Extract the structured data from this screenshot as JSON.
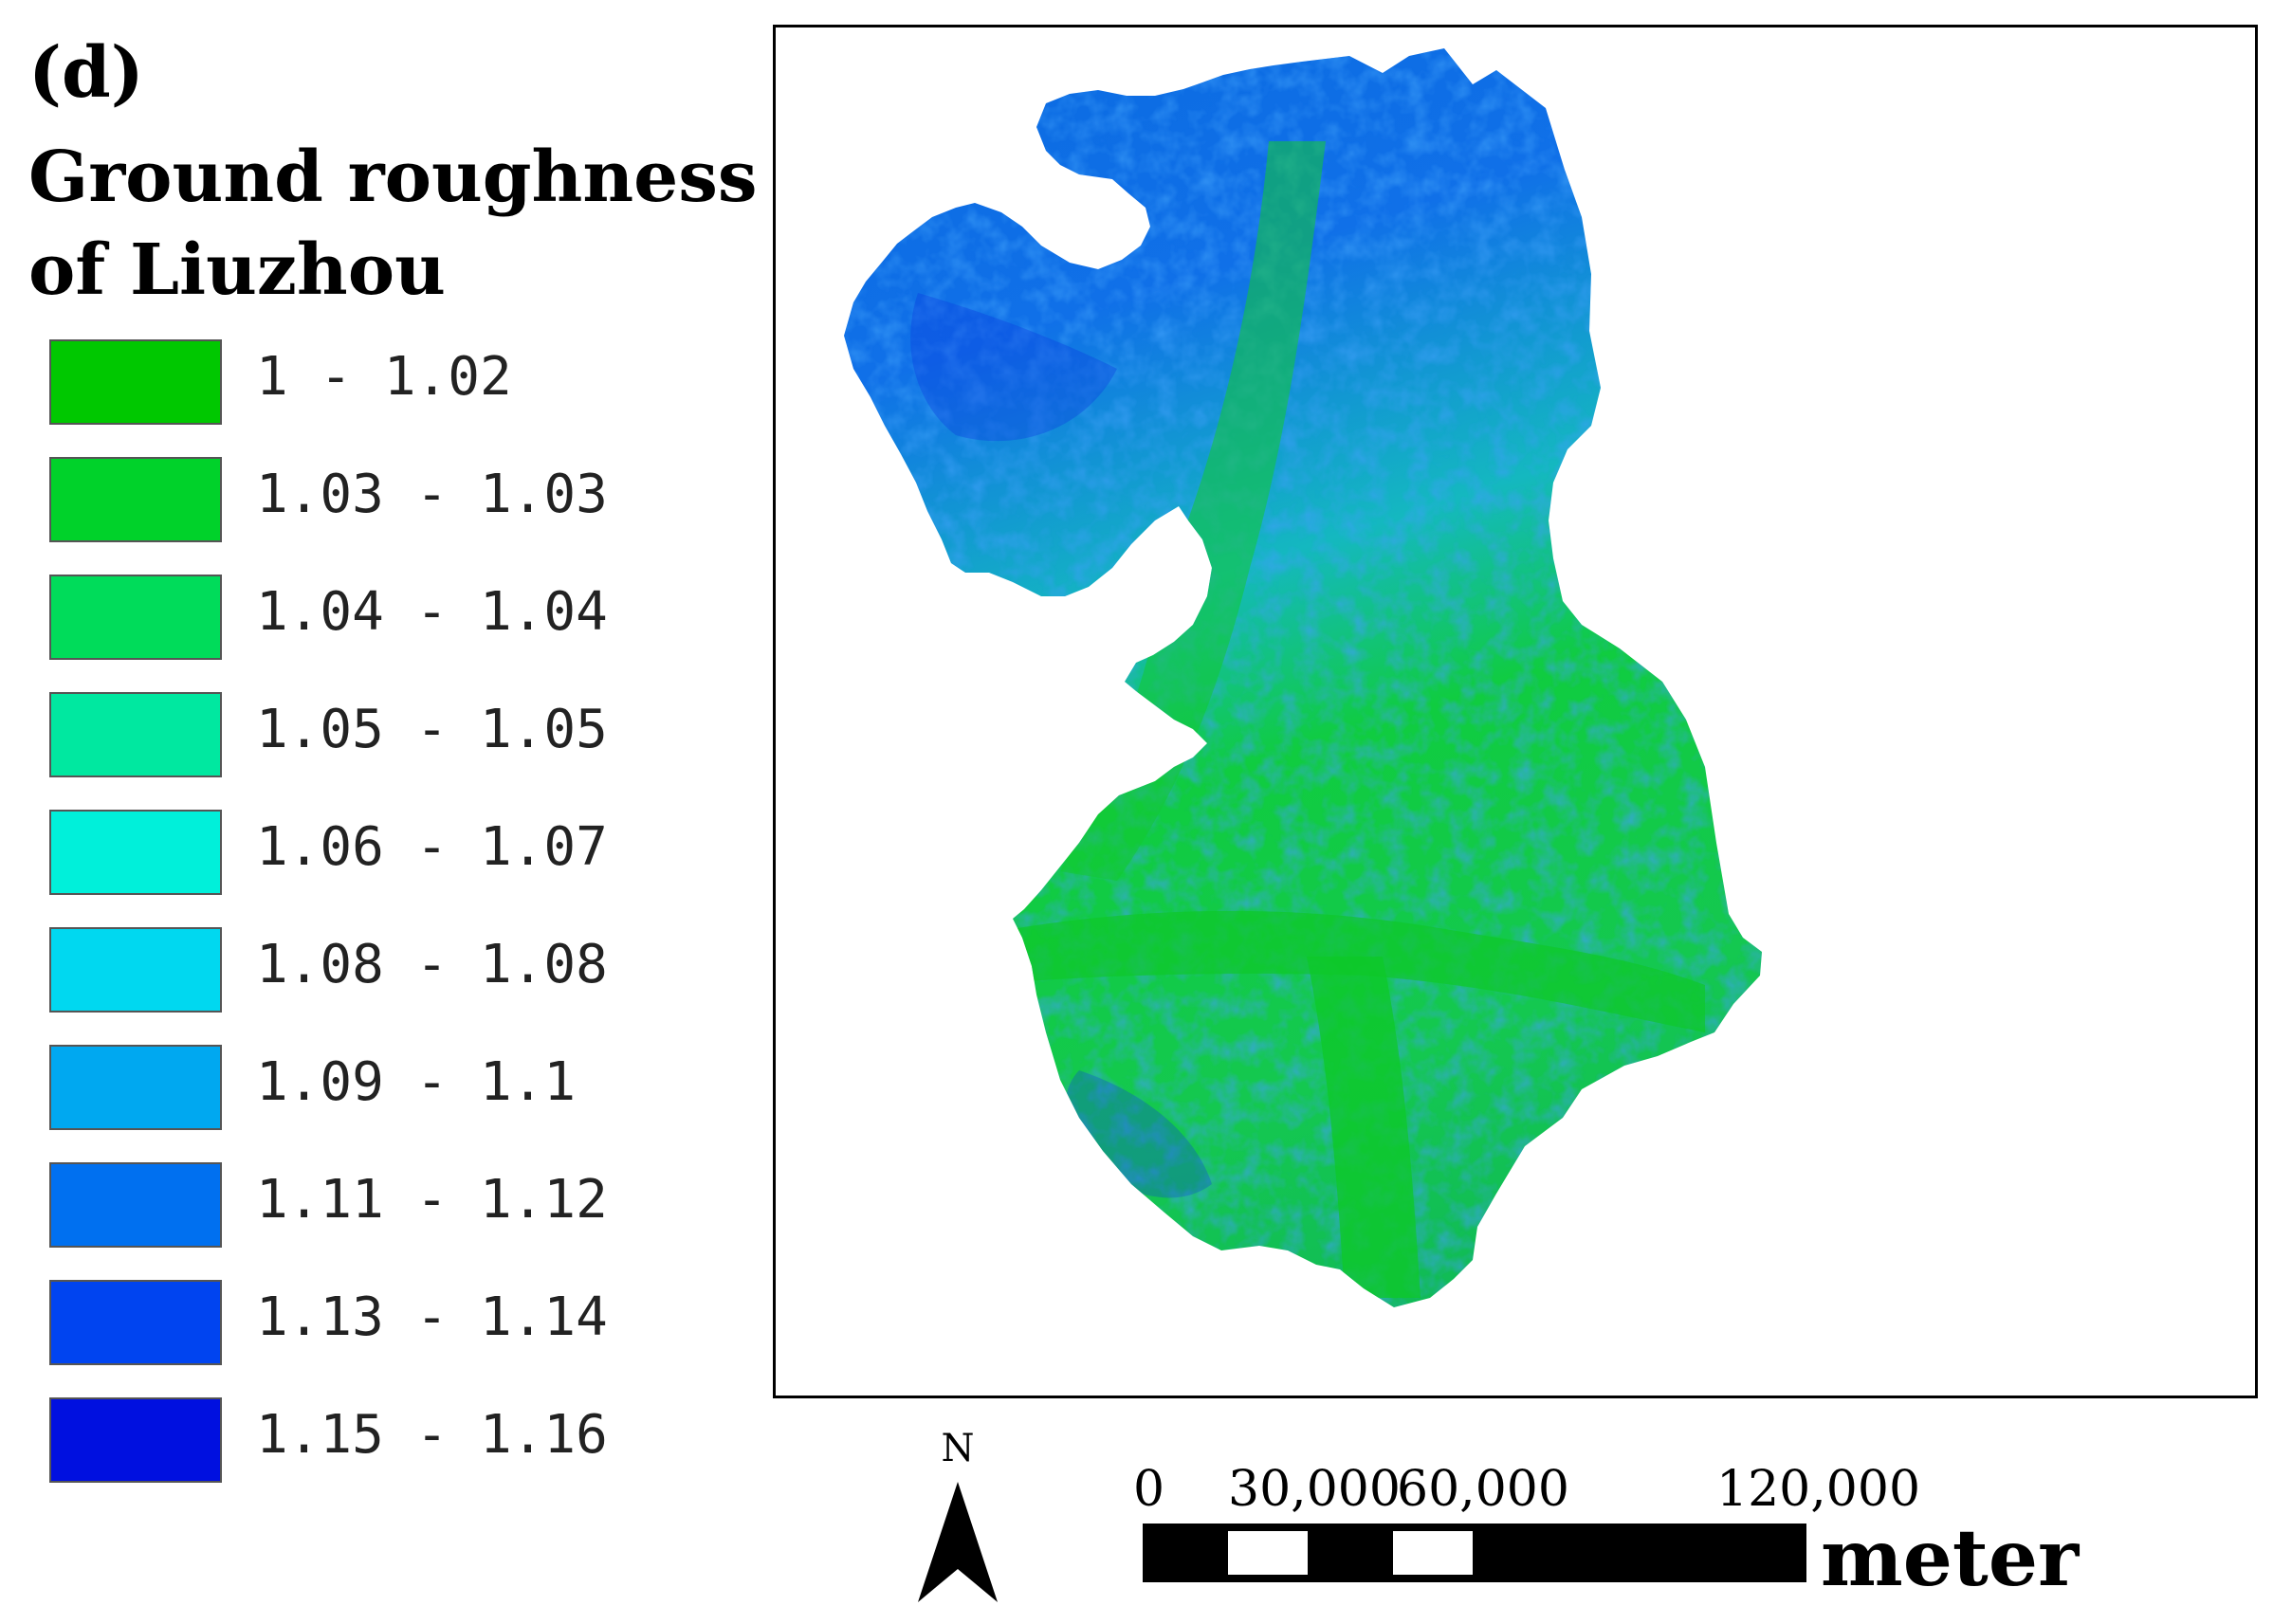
{
  "panel_label": "(d)",
  "title_lines": [
    "Ground roughness",
    "of Liuzhou"
  ],
  "legend": [
    {
      "label": "1 - 1.02",
      "color": "#00C800"
    },
    {
      "label": "1.03 - 1.03",
      "color": "#00D22A"
    },
    {
      "label": "1.04 - 1.04",
      "color": "#00DC5A"
    },
    {
      "label": "1.05 - 1.05",
      "color": "#00E8A0"
    },
    {
      "label": "1.06 - 1.07",
      "color": "#00F0DA"
    },
    {
      "label": "1.08 - 1.08",
      "color": "#00D8F0"
    },
    {
      "label": "1.09 - 1.1",
      "color": "#00A8F0"
    },
    {
      "label": "1.11 - 1.12",
      "color": "#0070F0"
    },
    {
      "label": "1.13 - 1.14",
      "color": "#0044F0"
    },
    {
      "label": "1.15 - 1.16",
      "color": "#0010E0"
    }
  ],
  "north_label": "N",
  "scalebar": {
    "ticks": [
      "0",
      "30,000",
      "60,000",
      "120,000"
    ],
    "unit": "meter"
  }
}
